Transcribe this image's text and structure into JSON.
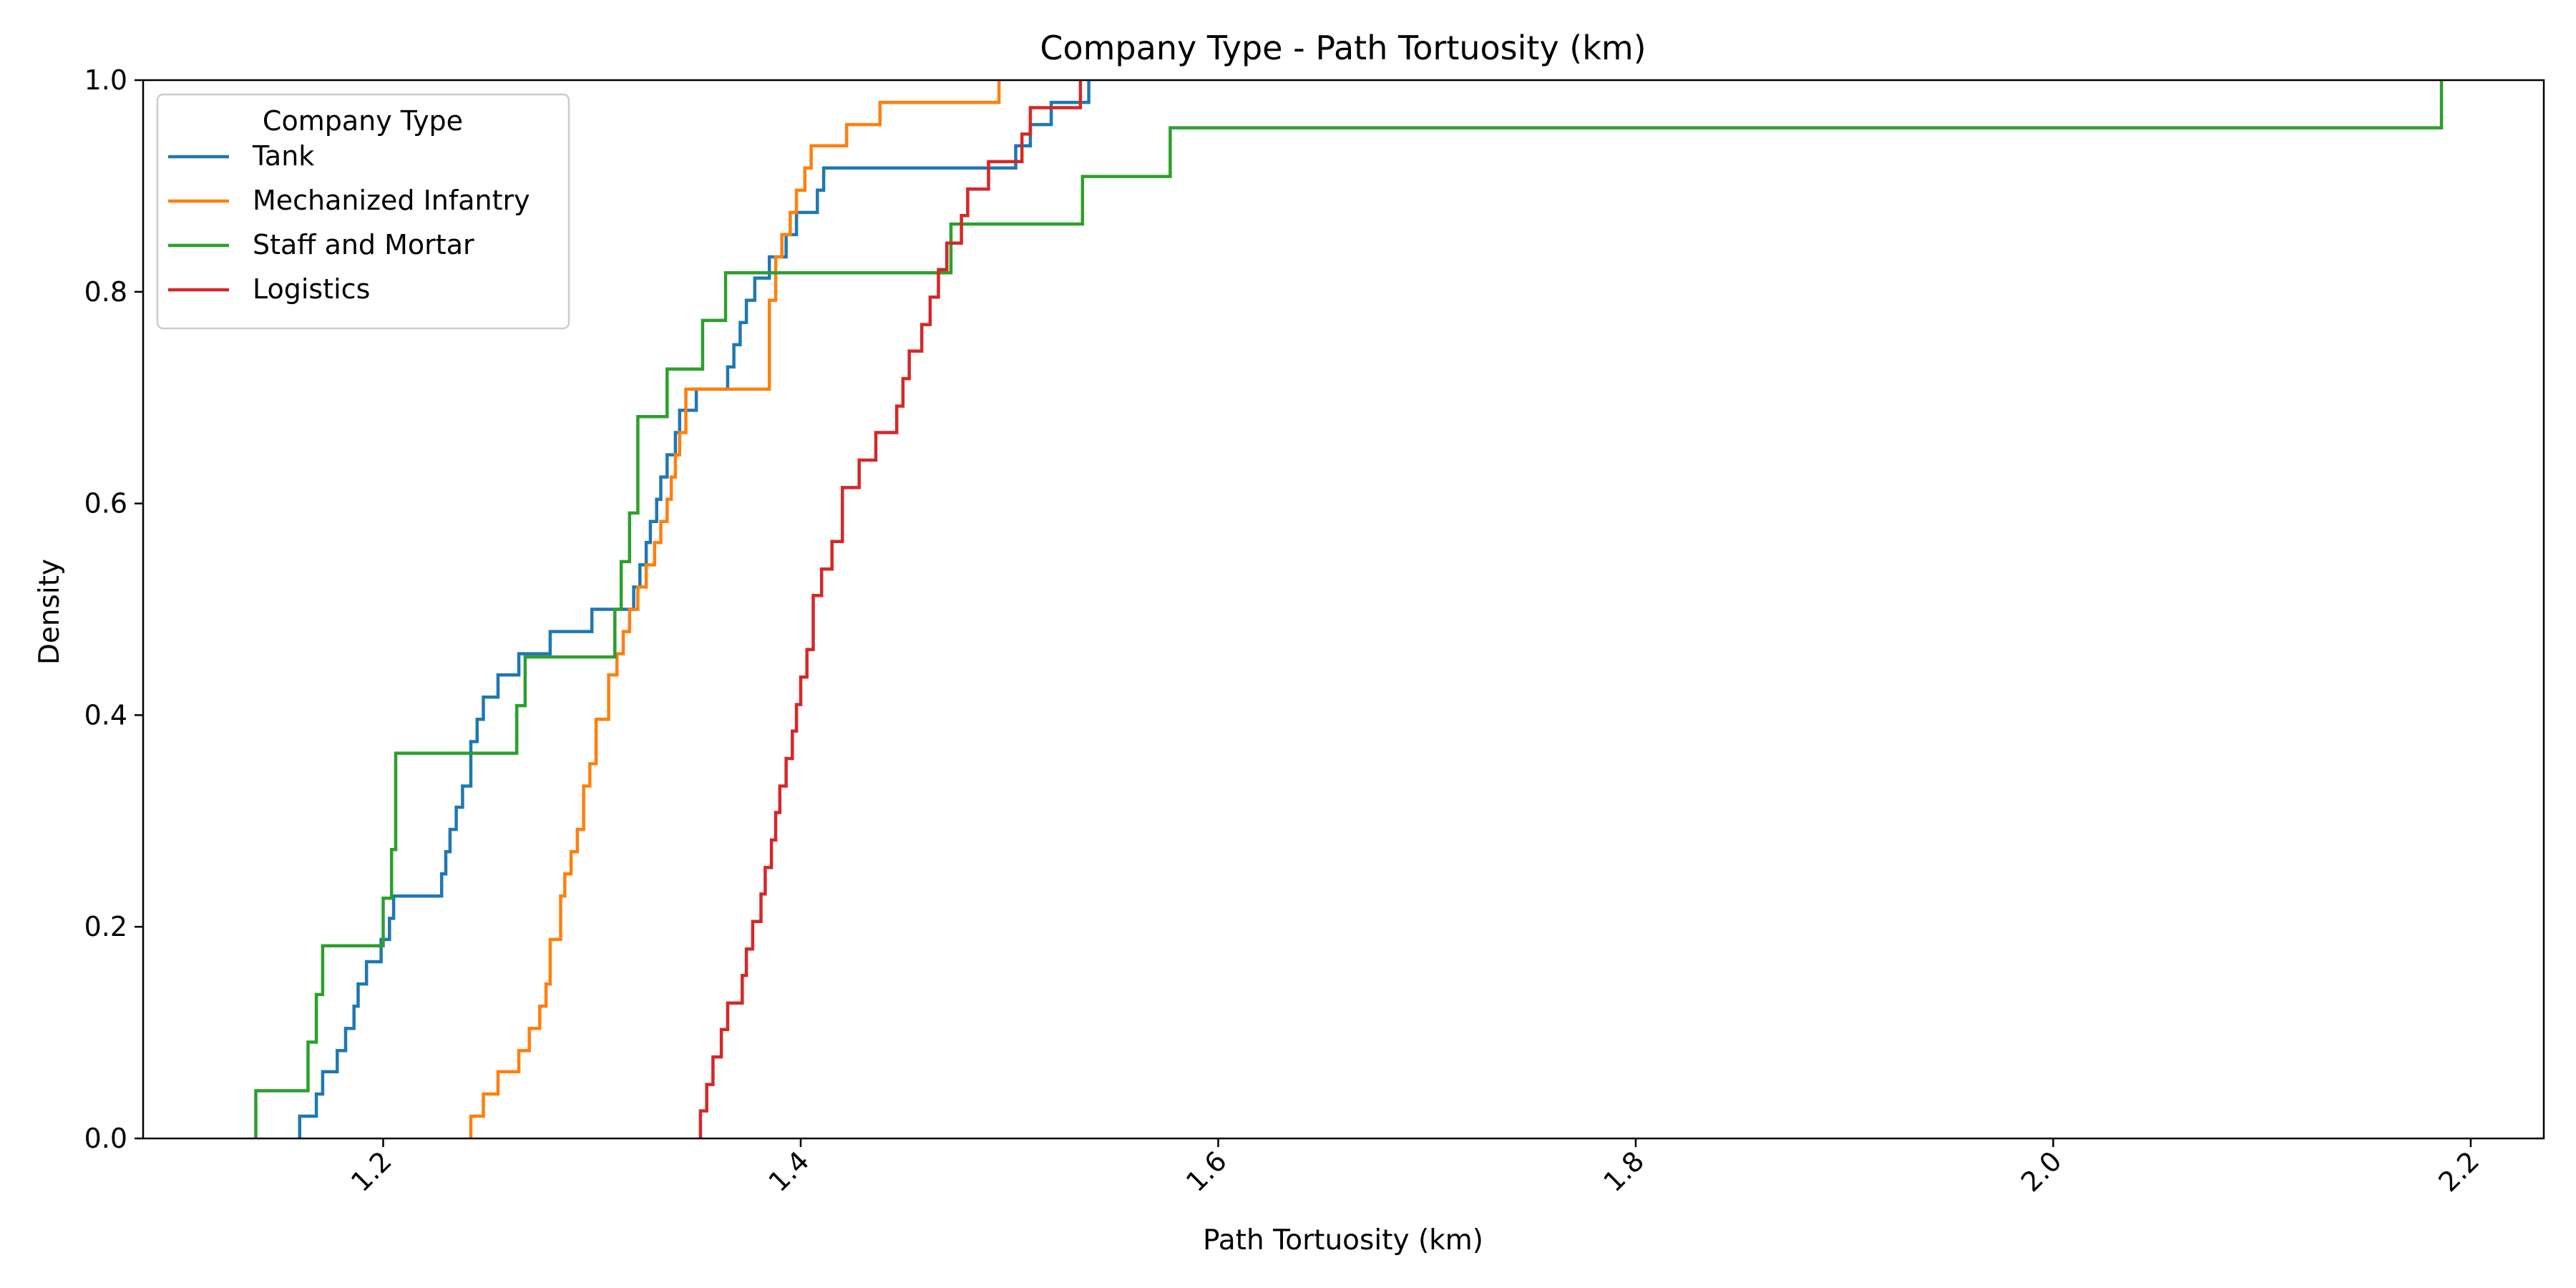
{
  "chart_data": {
    "type": "line",
    "subtype": "ecdf-step",
    "title": "Company Type - Path Tortuosity (km)",
    "xlabel": "Path Tortuosity (km)",
    "ylabel": "Density",
    "xlim": [
      1.085,
      2.235
    ],
    "ylim": [
      0.0,
      1.0
    ],
    "x_ticks": [
      1.2,
      1.4,
      1.6,
      1.8,
      2.0,
      2.2
    ],
    "x_tick_labels": [
      "1.2",
      "1.4",
      "1.6",
      "1.8",
      "2.0",
      "2.2"
    ],
    "x_tick_rotation": 45,
    "y_ticks": [
      0.0,
      0.2,
      0.4,
      0.6,
      0.8,
      1.0
    ],
    "y_tick_labels": [
      "0.0",
      "0.2",
      "0.4",
      "0.6",
      "0.8",
      "1.0"
    ],
    "grid": false,
    "legend": {
      "title": "Company Type",
      "placement": "top-left"
    },
    "series": [
      {
        "name": "Tank",
        "color": "#1f77b4",
        "x": [
          1.16,
          1.168,
          1.171,
          1.178,
          1.182,
          1.186,
          1.188,
          1.192,
          1.199,
          1.203,
          1.205,
          1.228,
          1.23,
          1.232,
          1.235,
          1.238,
          1.242,
          1.245,
          1.248,
          1.255,
          1.265,
          1.28,
          1.3,
          1.32,
          1.323,
          1.326,
          1.328,
          1.331,
          1.333,
          1.336,
          1.34,
          1.342,
          1.35,
          1.365,
          1.368,
          1.371,
          1.374,
          1.378,
          1.385,
          1.393,
          1.398,
          1.408,
          1.411,
          1.418,
          1.443,
          1.468,
          1.503,
          1.51,
          1.52,
          1.538
        ],
        "y": [
          0.021,
          0.042,
          0.063,
          0.083,
          0.104,
          0.125,
          0.146,
          0.167,
          0.188,
          0.208,
          0.229,
          0.25,
          0.271,
          0.292,
          0.313,
          0.333,
          0.375,
          0.396,
          0.417,
          0.438,
          0.458,
          0.479,
          0.5,
          0.521,
          0.542,
          0.563,
          0.583,
          0.604,
          0.625,
          0.646,
          0.667,
          0.688,
          0.708,
          0.729,
          0.75,
          0.771,
          0.792,
          0.813,
          0.833,
          0.854,
          0.875,
          0.896,
          0.917,
          0.917,
          0.917,
          0.917,
          0.938,
          0.958,
          0.979,
          1.0
        ]
      },
      {
        "name": "Mechanized Infantry",
        "color": "#ff7f0e",
        "x": [
          1.242,
          1.248,
          1.255,
          1.265,
          1.27,
          1.275,
          1.278,
          1.28,
          1.285,
          1.287,
          1.29,
          1.293,
          1.296,
          1.299,
          1.302,
          1.308,
          1.312,
          1.315,
          1.318,
          1.322,
          1.326,
          1.33,
          1.333,
          1.336,
          1.338,
          1.34,
          1.342,
          1.345,
          1.385,
          1.388,
          1.391,
          1.395,
          1.398,
          1.402,
          1.405,
          1.422,
          1.43,
          1.438,
          1.495
        ],
        "y": [
          0.021,
          0.042,
          0.063,
          0.083,
          0.104,
          0.125,
          0.146,
          0.188,
          0.229,
          0.25,
          0.271,
          0.292,
          0.333,
          0.354,
          0.396,
          0.438,
          0.458,
          0.479,
          0.5,
          0.521,
          0.542,
          0.563,
          0.583,
          0.604,
          0.625,
          0.646,
          0.667,
          0.708,
          0.792,
          0.833,
          0.854,
          0.875,
          0.896,
          0.917,
          0.938,
          0.958,
          0.958,
          0.979,
          1.0
        ]
      },
      {
        "name": "Staff and Mortar",
        "color": "#2ca02c",
        "x": [
          1.139,
          1.164,
          1.168,
          1.171,
          1.2,
          1.204,
          1.206,
          1.264,
          1.268,
          1.272,
          1.311,
          1.314,
          1.318,
          1.322,
          1.336,
          1.353,
          1.364,
          1.467,
          1.472,
          1.535,
          1.577,
          2.186
        ],
        "y": [
          0.045,
          0.091,
          0.136,
          0.182,
          0.227,
          0.273,
          0.364,
          0.409,
          0.455,
          0.455,
          0.5,
          0.545,
          0.591,
          0.682,
          0.727,
          0.773,
          0.818,
          0.818,
          0.864,
          0.909,
          0.955,
          1.0
        ]
      },
      {
        "name": "Logistics",
        "color": "#d62728",
        "x": [
          1.352,
          1.355,
          1.358,
          1.362,
          1.365,
          1.372,
          1.374,
          1.377,
          1.381,
          1.383,
          1.386,
          1.388,
          1.39,
          1.393,
          1.396,
          1.398,
          1.4,
          1.403,
          1.406,
          1.41,
          1.415,
          1.42,
          1.428,
          1.436,
          1.446,
          1.449,
          1.452,
          1.458,
          1.462,
          1.466,
          1.47,
          1.477,
          1.48,
          1.49,
          1.506,
          1.51,
          1.518,
          1.534
        ],
        "y": [
          0.026,
          0.051,
          0.077,
          0.103,
          0.128,
          0.154,
          0.179,
          0.205,
          0.231,
          0.256,
          0.282,
          0.308,
          0.333,
          0.359,
          0.385,
          0.41,
          0.436,
          0.462,
          0.513,
          0.538,
          0.564,
          0.615,
          0.641,
          0.667,
          0.692,
          0.718,
          0.744,
          0.769,
          0.795,
          0.821,
          0.846,
          0.872,
          0.897,
          0.923,
          0.949,
          0.974,
          0.974,
          1.0
        ]
      }
    ]
  }
}
